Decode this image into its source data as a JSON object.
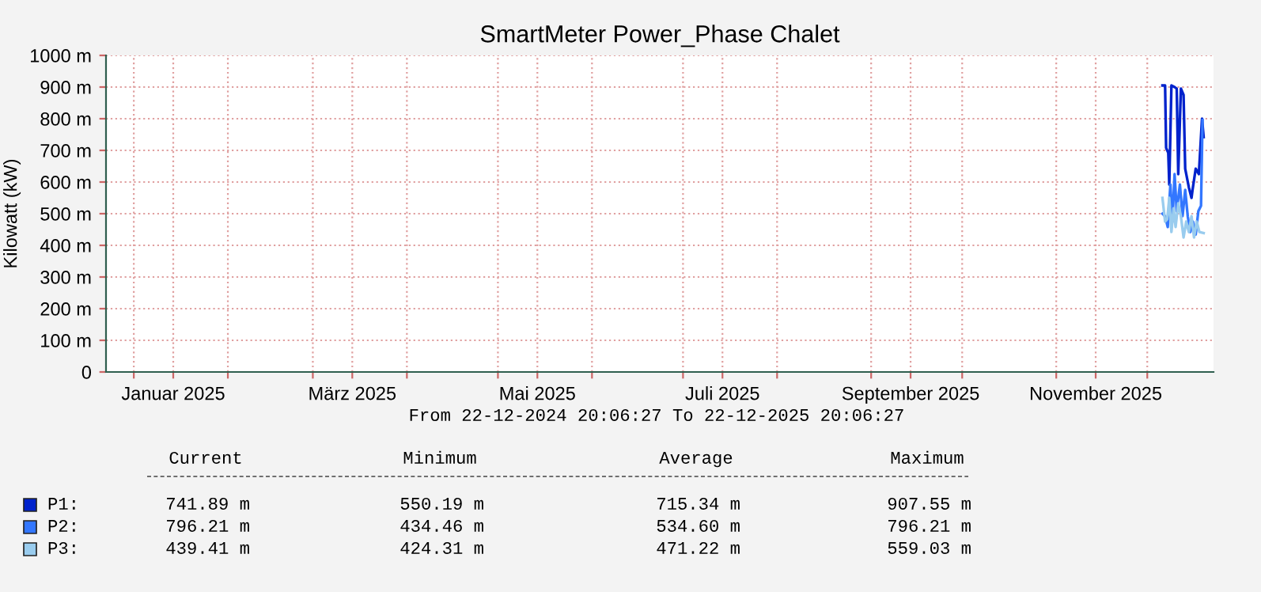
{
  "chart_data": {
    "type": "line",
    "title": "SmartMeter Power_Phase Chalet",
    "ylabel": "Kilowatt (kW)",
    "xlim": [
      "2024-12-22T20:06",
      "2025-12-22T20:06"
    ],
    "xticks": [
      {
        "value": "2025-01-01",
        "label": null
      },
      {
        "value": "2025-01-14",
        "label": "Januar 2025"
      },
      {
        "value": "2025-02-01",
        "label": null
      },
      {
        "value": "2025-03-01",
        "label": null
      },
      {
        "value": "2025-03-14",
        "label": "März 2025"
      },
      {
        "value": "2025-04-01",
        "label": null
      },
      {
        "value": "2025-05-01",
        "label": null
      },
      {
        "value": "2025-05-14",
        "label": "Mai 2025"
      },
      {
        "value": "2025-06-01",
        "label": null
      },
      {
        "value": "2025-07-01",
        "label": null
      },
      {
        "value": "2025-07-14",
        "label": "Juli 2025"
      },
      {
        "value": "2025-08-01",
        "label": null
      },
      {
        "value": "2025-09-01",
        "label": null
      },
      {
        "value": "2025-09-14",
        "label": "September 2025"
      },
      {
        "value": "2025-10-01",
        "label": null
      },
      {
        "value": "2025-11-01",
        "label": null
      },
      {
        "value": "2025-11-14",
        "label": "November 2025"
      },
      {
        "value": "2025-12-01",
        "label": null
      }
    ],
    "ylim": [
      0,
      1000
    ],
    "yticks": [
      0,
      {
        "value": 100,
        "label": "100 m"
      },
      {
        "value": 200,
        "label": "200 m"
      },
      {
        "value": 300,
        "label": "300 m"
      },
      {
        "value": 400,
        "label": "400 m"
      },
      {
        "value": 500,
        "label": "500 m"
      },
      {
        "value": 600,
        "label": "600 m"
      },
      {
        "value": 700,
        "label": "700 m"
      },
      {
        "value": 800,
        "label": "800 m"
      },
      {
        "value": 900,
        "label": "900 m"
      },
      {
        "value": 1000,
        "label": "1000 m"
      }
    ],
    "grid": true,
    "legend": "bottom",
    "marker": "none",
    "line_style": "solid",
    "series": [
      {
        "name": "P1:",
        "color": "#0022cc",
        "x": [
          "2025-12-06T00:00",
          "2025-12-06T21:00",
          "2025-12-07T05:00",
          "2025-12-07T22:00",
          "2025-12-08T06:00",
          "2025-12-08T23:00",
          "2025-12-10T00:00",
          "2025-12-10T17:00",
          "2025-12-11T05:00",
          "2025-12-12T02:00",
          "2025-12-12T23:00",
          "2025-12-13T12:00",
          "2025-12-14T17:00",
          "2025-12-15T14:00",
          "2025-12-15T22:00",
          "2025-12-16T23:00",
          "2025-12-18T00:00",
          "2025-12-19T01:00",
          "2025-12-19T14:00"
        ],
        "values": [
          905,
          905,
          708,
          692,
          592,
          905,
          900,
          895,
          625,
          895,
          875,
          642,
          583,
          550,
          575,
          642,
          625,
          800,
          742
        ]
      },
      {
        "name": "P2:",
        "color": "#3377ff",
        "x": [
          "2025-12-06T00:00",
          "2025-12-06T21:00",
          "2025-12-07T18:00",
          "2025-12-08T15:00",
          "2025-12-09T07:00",
          "2025-12-10T00:00",
          "2025-12-10T17:00",
          "2025-12-11T18:00",
          "2025-12-12T15:00",
          "2025-12-13T12:00",
          "2025-12-14T08:00",
          "2025-12-15T05:00",
          "2025-12-16T02:00",
          "2025-12-16T23:00",
          "2025-12-17T20:00",
          "2025-12-18T17:00",
          "2025-12-19T05:00"
        ],
        "values": [
          500,
          492,
          458,
          592,
          475,
          625,
          508,
          592,
          492,
          575,
          492,
          442,
          475,
          434,
          508,
          525,
          796
        ]
      },
      {
        "name": "P3:",
        "color": "#99ccee",
        "x": [
          "2025-12-06T00:00",
          "2025-12-06T21:00",
          "2025-12-07T14:00",
          "2025-12-08T06:00",
          "2025-12-08T23:00",
          "2025-12-09T16:00",
          "2025-12-10T08:00",
          "2025-12-11T05:00",
          "2025-12-12T02:00",
          "2025-12-12T23:00",
          "2025-12-13T20:00",
          "2025-12-14T17:00",
          "2025-12-15T14:00",
          "2025-12-16T10:00",
          "2025-12-17T07:00",
          "2025-12-18T04:00",
          "2025-12-19T14:00"
        ],
        "values": [
          550,
          475,
          483,
          550,
          442,
          517,
          458,
          533,
          492,
          425,
          475,
          442,
          492,
          425,
          475,
          442,
          439
        ]
      }
    ],
    "annotations": [
      "From 22-12-2024 20:06:27 To 22-12-2025 20:06:27",
      "Current",
      "Minimum",
      "Average",
      "Maximum",
      "741.89 m",
      "550.19 m",
      "715.34 m",
      "907.55 m",
      "796.21 m",
      "434.46 m",
      "534.60 m",
      "796.21 m",
      "439.41 m",
      "424.31 m",
      "471.22 m",
      "559.03 m"
    ]
  }
}
